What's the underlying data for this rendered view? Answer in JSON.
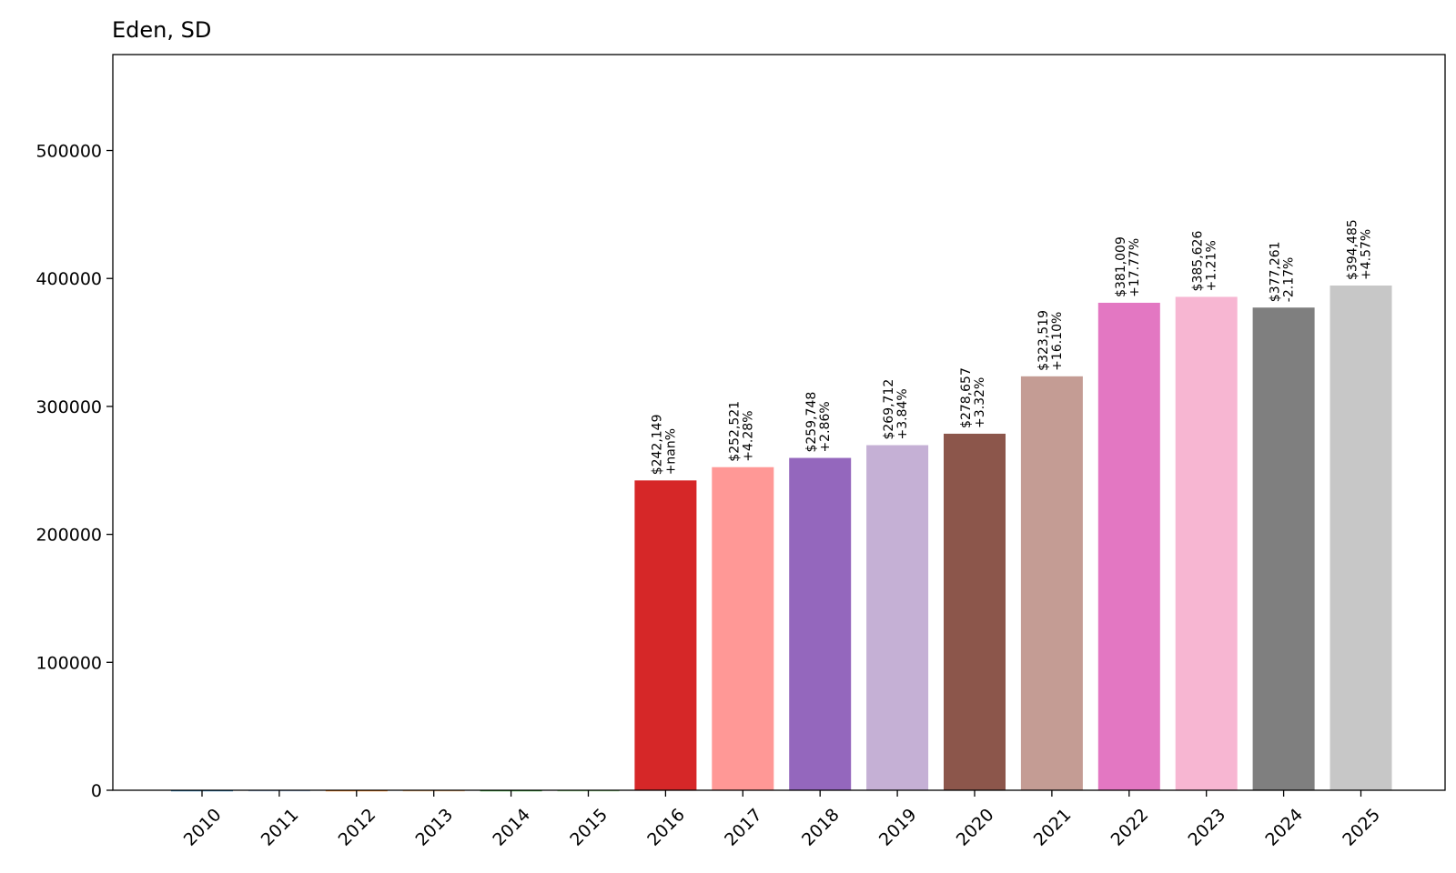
{
  "chart_data": {
    "type": "bar",
    "title": "Eden, SD",
    "xlabel": "",
    "ylabel": "",
    "categories": [
      "2010",
      "2011",
      "2012",
      "2013",
      "2014",
      "2015",
      "2016",
      "2017",
      "2018",
      "2019",
      "2020",
      "2021",
      "2022",
      "2023",
      "2024",
      "2025"
    ],
    "values": [
      0,
      0,
      0,
      0,
      0,
      0,
      242149,
      252521,
      259748,
      269712,
      278657,
      323519,
      381009,
      385626,
      377261,
      394485
    ],
    "value_labels": [
      "",
      "",
      "",
      "",
      "",
      "",
      "$242,149",
      "$252,521",
      "$259,748",
      "$269,712",
      "$278,657",
      "$323,519",
      "$381,009",
      "$385,626",
      "$377,261",
      "$394,485"
    ],
    "change_labels": [
      "",
      "",
      "",
      "",
      "",
      "",
      "+nan%",
      "+4.28%",
      "+2.86%",
      "+3.84%",
      "+3.32%",
      "+16.10%",
      "+17.77%",
      "+1.21%",
      "-2.17%",
      "+4.57%"
    ],
    "colors": [
      "#1f77b4",
      "#aec7e8",
      "#ff7f0e",
      "#ffbb78",
      "#2ca02c",
      "#98df8a",
      "#d62728",
      "#ff9896",
      "#9467bd",
      "#c5b0d5",
      "#8c564b",
      "#c49c94",
      "#e377c2",
      "#f7b6d2",
      "#7f7f7f",
      "#c7c7c7"
    ],
    "ylim": [
      0,
      575000
    ],
    "yticks": [
      0,
      100000,
      200000,
      300000,
      400000,
      500000
    ],
    "grid": false
  }
}
